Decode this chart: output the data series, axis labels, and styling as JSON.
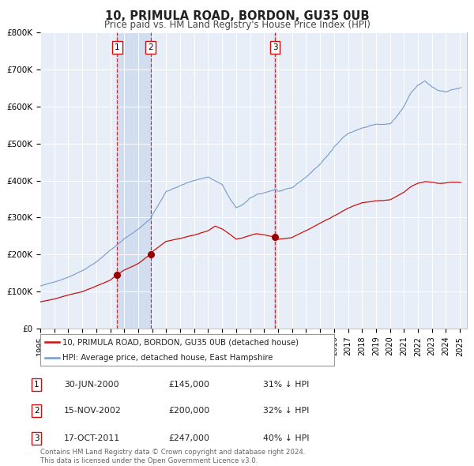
{
  "title": "10, PRIMULA ROAD, BORDON, GU35 0UB",
  "subtitle": "Price paid vs. HM Land Registry's House Price Index (HPI)",
  "title_fontsize": 10.5,
  "subtitle_fontsize": 8.5,
  "background_color": "#ffffff",
  "plot_bg_color": "#e8eef8",
  "grid_color": "#ffffff",
  "hpi_color": "#7799cc",
  "price_color": "#cc1111",
  "shade_color": "#d0ddf0",
  "ylim": [
    0,
    800000
  ],
  "yticks": [
    0,
    100000,
    200000,
    300000,
    400000,
    500000,
    600000,
    700000,
    800000
  ],
  "ytick_labels": [
    "£0",
    "£100K",
    "£200K",
    "£300K",
    "£400K",
    "£500K",
    "£600K",
    "£700K",
    "£800K"
  ],
  "xmin_year": 1995.0,
  "xmax_year": 2025.5,
  "sale_dates_num": [
    2000.5,
    2002.88,
    2011.79
  ],
  "sale_prices": [
    145000,
    200000,
    247000
  ],
  "sale_labels": [
    "1",
    "2",
    "3"
  ],
  "vline_color": "#cc1111",
  "dot_color": "#990000",
  "legend_label_price": "10, PRIMULA ROAD, BORDON, GU35 0UB (detached house)",
  "legend_label_hpi": "HPI: Average price, detached house, East Hampshire",
  "table_rows": [
    {
      "num": "1",
      "date": "30-JUN-2000",
      "price": "£145,000",
      "pct": "31% ↓ HPI"
    },
    {
      "num": "2",
      "date": "15-NOV-2002",
      "price": "£200,000",
      "pct": "32% ↓ HPI"
    },
    {
      "num": "3",
      "date": "17-OCT-2011",
      "price": "£247,000",
      "pct": "40% ↓ HPI"
    }
  ],
  "footnote": "Contains HM Land Registry data © Crown copyright and database right 2024.\nThis data is licensed under the Open Government Licence v3.0.",
  "xtick_years": [
    1995,
    1996,
    1997,
    1998,
    1999,
    2000,
    2001,
    2002,
    2003,
    2004,
    2005,
    2006,
    2007,
    2008,
    2009,
    2010,
    2011,
    2012,
    2013,
    2014,
    2015,
    2016,
    2017,
    2018,
    2019,
    2020,
    2021,
    2022,
    2023,
    2024,
    2025
  ]
}
